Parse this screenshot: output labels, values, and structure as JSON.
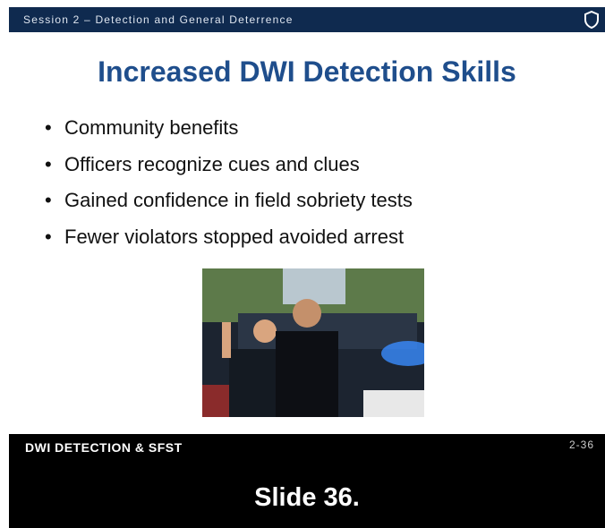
{
  "header": {
    "session": "Session 2 – Detection and General Deterrence"
  },
  "slide": {
    "title": "Increased DWI Detection Skills",
    "bullets": [
      "Community benefits",
      "Officers recognize cues and clues",
      "Gained confidence in field sobriety tests",
      "Fewer violators stopped avoided arrest"
    ]
  },
  "footer": {
    "course": "DWI DETECTION & SFST",
    "page_number": "2-36"
  },
  "caption": "Slide 36."
}
